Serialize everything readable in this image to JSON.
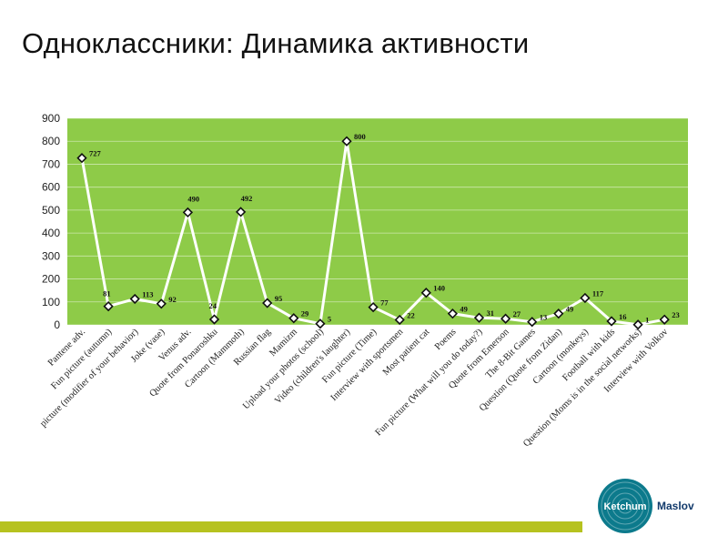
{
  "slide": {
    "title": "Одноклассники: Динамика активности"
  },
  "logo": {
    "primary": "Ketchum",
    "secondary": "Maslov"
  },
  "colors": {
    "plot_background": "#8ecb48",
    "line": "#ffffff",
    "marker_fill": "#ffffff",
    "marker_stroke": "#111111",
    "bottom_bar": "#b6c21f",
    "logo_circle": "#0c7a8c"
  },
  "chart_data": {
    "type": "line",
    "title": "",
    "xlabel": "",
    "ylabel": "",
    "ylim": [
      0,
      900
    ],
    "yticks": [
      0,
      100,
      200,
      300,
      400,
      500,
      600,
      700,
      800,
      900
    ],
    "grid": true,
    "legend": "none",
    "categories": [
      "Pantene adv.",
      "Fun picture (autumn)",
      "picture (modifier of your behavior)",
      "Joke (vase)",
      "Venus adv.",
      "Quote from Ponaroshku",
      "Cartoon (Mammoth)",
      "Russian flag",
      "Mamizm",
      "Upload your photos (school)",
      "Video (children's laughter)",
      "Fun picture (Time)",
      "Interview with sportsmen",
      "Most patient cat",
      "Poems",
      "Fun picture (What will you do today?)",
      "Quote from Emerson",
      "The 8-Bit Games",
      "Question (Quote from Zidan)",
      "Cartoon (monkeys)",
      "Football with kids",
      "Question (Moms is in the social networks)",
      "Interview with Volkov"
    ],
    "values": [
      727,
      81,
      113,
      92,
      490,
      24,
      492,
      95,
      29,
      5,
      800,
      77,
      22,
      140,
      49,
      31,
      27,
      13,
      49,
      117,
      16,
      1,
      23
    ]
  }
}
